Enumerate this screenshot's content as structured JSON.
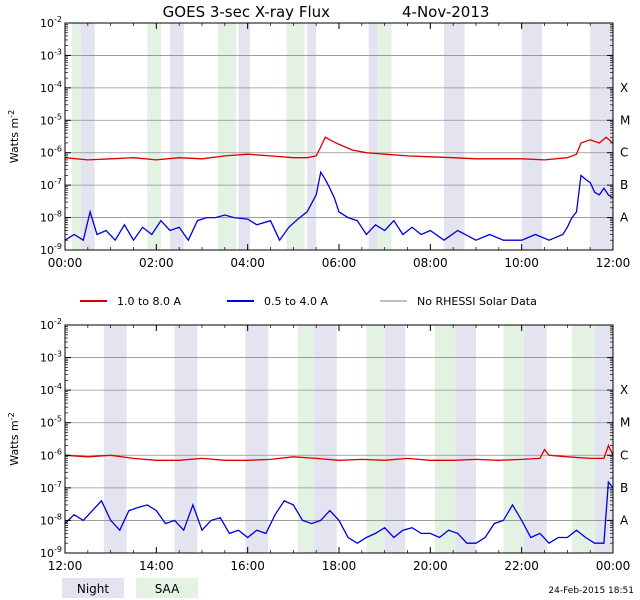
{
  "title": "GOES 3-sec X-ray Flux",
  "date": "4-Nov-2013",
  "footer_timestamp": "24-Feb-2015 18:51",
  "colors": {
    "long": "#dd0000",
    "short": "#0000dd",
    "no_rhessi": "#999999",
    "night": "#e4e4f0",
    "saa": "#e4f2e4",
    "grid": "#909090"
  },
  "legend": [
    {
      "key": "long",
      "label": "1.0 to 8.0 A"
    },
    {
      "key": "short",
      "label": "0.5 to 4.0 A"
    },
    {
      "key": "no_rhessi",
      "label": "No RHESSI Solar Data"
    }
  ],
  "bottom_legend": [
    {
      "key": "night",
      "label": "Night"
    },
    {
      "key": "saa",
      "label": "SAA"
    }
  ],
  "chart_data": [
    {
      "type": "line",
      "ylabel": "Watts m",
      "ylabel_exp": "-2",
      "yscale": "log",
      "ylim": [
        1e-09,
        0.01
      ],
      "ytick_exponents": [
        "-9",
        "-8",
        "-7",
        "-6",
        "-5",
        "-4",
        "-3",
        "-2"
      ],
      "flare_classes": [
        {
          "label": "X",
          "value": 0.0001
        },
        {
          "label": "M",
          "value": 1e-05
        },
        {
          "label": "C",
          "value": 1e-06
        },
        {
          "label": "B",
          "value": 1e-07
        },
        {
          "label": "A",
          "value": 1e-08
        }
      ],
      "xlim": [
        0,
        12
      ],
      "xticks": [
        {
          "value": 0,
          "label": "00:00"
        },
        {
          "value": 2,
          "label": "02:00"
        },
        {
          "value": 4,
          "label": "04:00"
        },
        {
          "value": 6,
          "label": "06:00"
        },
        {
          "value": 8,
          "label": "08:00"
        },
        {
          "value": 10,
          "label": "10:00"
        },
        {
          "value": 12,
          "label": "12:00"
        }
      ],
      "night": [
        [
          0.35,
          0.65
        ],
        [
          2.3,
          2.6
        ],
        [
          3.8,
          4.05
        ],
        [
          5.3,
          5.5
        ],
        [
          6.65,
          6.85
        ],
        [
          8.3,
          8.75
        ],
        [
          10.0,
          10.45
        ],
        [
          11.5,
          12.0
        ]
      ],
      "saa": [
        [
          0.15,
          0.35
        ],
        [
          1.8,
          2.1
        ],
        [
          3.35,
          3.75
        ],
        [
          4.85,
          5.25
        ],
        [
          6.85,
          7.15
        ]
      ],
      "series": [
        {
          "name": "1.0 to 8.0 A",
          "key": "long",
          "x": [
            0,
            0.5,
            1.0,
            1.5,
            2.0,
            2.5,
            3.0,
            3.5,
            4.0,
            4.5,
            5.0,
            5.3,
            5.5,
            5.6,
            5.7,
            5.8,
            6.0,
            6.3,
            6.6,
            7.0,
            7.5,
            8.0,
            8.5,
            9.0,
            9.5,
            10.0,
            10.5,
            11.0,
            11.2,
            11.3,
            11.5,
            11.7,
            11.85,
            12.0
          ],
          "y": [
            7e-07,
            6e-07,
            6.5e-07,
            7e-07,
            6e-07,
            7e-07,
            6.5e-07,
            8e-07,
            9e-07,
            8e-07,
            7e-07,
            7e-07,
            8e-07,
            1.5e-06,
            3e-06,
            2.5e-06,
            1.8e-06,
            1.2e-06,
            1e-06,
            9e-07,
            8e-07,
            7.5e-07,
            7e-07,
            6.5e-07,
            6.5e-07,
            6.5e-07,
            6e-07,
            7e-07,
            9e-07,
            2e-06,
            2.5e-06,
            2e-06,
            3e-06,
            2e-06
          ]
        },
        {
          "name": "0.5 to 4.0 A",
          "key": "short",
          "x": [
            0,
            0.2,
            0.4,
            0.55,
            0.7,
            0.9,
            1.1,
            1.3,
            1.5,
            1.7,
            1.9,
            2.1,
            2.3,
            2.5,
            2.7,
            2.9,
            3.1,
            3.3,
            3.5,
            3.7,
            4.0,
            4.2,
            4.5,
            4.7,
            4.9,
            5.1,
            5.3,
            5.5,
            5.6,
            5.7,
            5.8,
            5.9,
            6.0,
            6.2,
            6.4,
            6.6,
            6.8,
            7.0,
            7.2,
            7.4,
            7.6,
            7.8,
            8.0,
            8.3,
            8.6,
            9.0,
            9.3,
            9.6,
            10.0,
            10.3,
            10.6,
            10.9,
            11.0,
            11.1,
            11.2,
            11.3,
            11.4,
            11.5,
            11.6,
            11.7,
            11.8,
            11.9,
            12.0
          ],
          "y": [
            2e-09,
            3e-09,
            2e-09,
            1.5e-08,
            3e-09,
            4e-09,
            2e-09,
            6e-09,
            2e-09,
            5e-09,
            3e-09,
            8e-09,
            4e-09,
            5e-09,
            2e-09,
            8e-09,
            1e-08,
            1e-08,
            1.2e-08,
            1e-08,
            9e-09,
            6e-09,
            8e-09,
            2e-09,
            5e-09,
            9e-09,
            1.5e-08,
            5e-08,
            2.5e-07,
            1.5e-07,
            8e-08,
            4e-08,
            1.5e-08,
            1e-08,
            8e-09,
            3e-09,
            6e-09,
            4e-09,
            8e-09,
            3e-09,
            5e-09,
            3e-09,
            4e-09,
            2e-09,
            4e-09,
            2e-09,
            3e-09,
            2e-09,
            2e-09,
            3e-09,
            2e-09,
            3e-09,
            5e-09,
            1e-08,
            1.5e-08,
            2e-07,
            1.5e-07,
            1.2e-07,
            6e-08,
            5e-08,
            8e-08,
            5e-08,
            4e-08
          ]
        }
      ]
    },
    {
      "type": "line",
      "ylabel": "Watts m",
      "ylabel_exp": "-2",
      "yscale": "log",
      "ylim": [
        1e-09,
        0.01
      ],
      "ytick_exponents": [
        "-9",
        "-8",
        "-7",
        "-6",
        "-5",
        "-4",
        "-3",
        "-2"
      ],
      "flare_classes": [
        {
          "label": "X",
          "value": 0.0001
        },
        {
          "label": "M",
          "value": 1e-05
        },
        {
          "label": "C",
          "value": 1e-06
        },
        {
          "label": "B",
          "value": 1e-07
        },
        {
          "label": "A",
          "value": 1e-08
        }
      ],
      "xlim": [
        12,
        24
      ],
      "xticks": [
        {
          "value": 12,
          "label": "12:00"
        },
        {
          "value": 14,
          "label": "14:00"
        },
        {
          "value": 16,
          "label": "16:00"
        },
        {
          "value": 18,
          "label": "18:00"
        },
        {
          "value": 20,
          "label": "20:00"
        },
        {
          "value": 22,
          "label": "22:00"
        },
        {
          "value": 24,
          "label": "00:00"
        }
      ],
      "night": [
        [
          12.85,
          13.35
        ],
        [
          14.4,
          14.9
        ],
        [
          15.95,
          16.45
        ],
        [
          17.45,
          17.95
        ],
        [
          19.0,
          19.45
        ],
        [
          20.55,
          21.0
        ],
        [
          22.05,
          22.55
        ],
        [
          23.6,
          24.0
        ]
      ],
      "saa": [
        [
          17.1,
          17.45
        ],
        [
          18.6,
          19.0
        ],
        [
          20.1,
          20.55
        ],
        [
          21.6,
          22.05
        ],
        [
          23.1,
          23.6
        ]
      ],
      "series": [
        {
          "name": "1.0 to 8.0 A",
          "key": "long",
          "x": [
            12.0,
            12.5,
            13.0,
            13.5,
            14.0,
            14.5,
            15.0,
            15.5,
            16.0,
            16.5,
            17.0,
            17.5,
            18.0,
            18.5,
            19.0,
            19.5,
            20.0,
            20.5,
            21.0,
            21.5,
            22.0,
            22.4,
            22.5,
            22.6,
            23.0,
            23.5,
            23.8,
            23.9,
            24.0
          ],
          "y": [
            1e-06,
            9e-07,
            1e-06,
            8e-07,
            7e-07,
            7e-07,
            8e-07,
            7e-07,
            7e-07,
            7.5e-07,
            9e-07,
            8e-07,
            7e-07,
            7.5e-07,
            7e-07,
            8e-07,
            7e-07,
            7e-07,
            7.5e-07,
            7e-07,
            7.5e-07,
            8e-07,
            1.5e-06,
            1e-06,
            9e-07,
            8e-07,
            8e-07,
            2e-06,
            1e-06
          ]
        },
        {
          "name": "0.5 to 4.0 A",
          "key": "short",
          "x": [
            12.0,
            12.2,
            12.4,
            12.6,
            12.8,
            13.0,
            13.2,
            13.4,
            13.6,
            13.8,
            14.0,
            14.2,
            14.4,
            14.6,
            14.8,
            15.0,
            15.2,
            15.4,
            15.6,
            15.8,
            16.0,
            16.2,
            16.4,
            16.6,
            16.8,
            17.0,
            17.2,
            17.4,
            17.6,
            17.8,
            18.0,
            18.2,
            18.4,
            18.6,
            18.8,
            19.0,
            19.2,
            19.4,
            19.6,
            19.8,
            20.0,
            20.2,
            20.4,
            20.6,
            20.8,
            21.0,
            21.2,
            21.4,
            21.6,
            21.8,
            22.0,
            22.2,
            22.4,
            22.6,
            22.8,
            23.0,
            23.2,
            23.4,
            23.6,
            23.8,
            23.9,
            24.0
          ],
          "y": [
            8e-09,
            1.5e-08,
            1e-08,
            2e-08,
            4e-08,
            1e-08,
            5e-09,
            2e-08,
            2.5e-08,
            3e-08,
            2e-08,
            8e-09,
            1e-08,
            5e-09,
            3e-08,
            5e-09,
            1e-08,
            1.2e-08,
            4e-09,
            5e-09,
            3e-09,
            5e-09,
            4e-09,
            1.5e-08,
            4e-08,
            3e-08,
            1e-08,
            8e-09,
            1e-08,
            2e-08,
            1e-08,
            3e-09,
            2e-09,
            3e-09,
            4e-09,
            6e-09,
            3e-09,
            5e-09,
            6e-09,
            4e-09,
            4e-09,
            3e-09,
            5e-09,
            4e-09,
            2e-09,
            2e-09,
            3e-09,
            8e-09,
            1e-08,
            3e-08,
            1e-08,
            3e-09,
            4e-09,
            2e-09,
            3e-09,
            3e-09,
            5e-09,
            3e-09,
            2e-09,
            2e-09,
            1.5e-07,
            1e-07
          ]
        }
      ]
    }
  ]
}
